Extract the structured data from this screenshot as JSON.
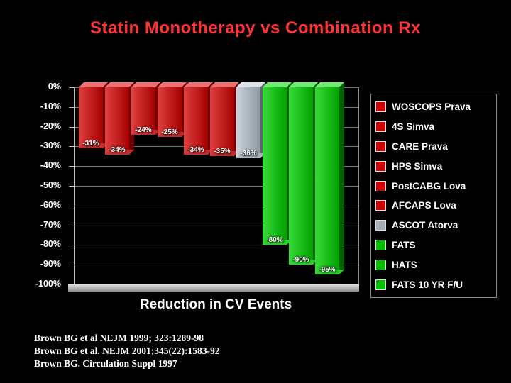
{
  "title": "Statin Monotherapy vs Combination Rx",
  "colors": {
    "background": "#000000",
    "title": "#ff3333",
    "axis_text": "#ffffff",
    "gridline": "#7a7a7a"
  },
  "palette": {
    "red": {
      "front1": "#e04040",
      "front2": "#a50000",
      "side": "#700000",
      "top": "#ee7070",
      "cap": "#c83030",
      "swatch": "#cc0000"
    },
    "silver": {
      "front1": "#ccd4dc",
      "front2": "#8d97a1",
      "side": "#5c666e",
      "top": "#dde4ea",
      "cap": "#aeb6be",
      "swatch": "#a4adb6"
    },
    "green": {
      "front1": "#38dc38",
      "front2": "#00a000",
      "side": "#006400",
      "top": "#70ea70",
      "cap": "#2cd42c",
      "swatch": "#00c000"
    }
  },
  "chart_data": {
    "type": "bar",
    "title": "Statin Monotherapy vs Combination Rx",
    "xlabel": "Reduction in CV Events",
    "ylabel": "",
    "ylim": [
      -100,
      0
    ],
    "grid": true,
    "legend_position": "right",
    "y_ticks": [
      "0%",
      "-10%",
      "-20%",
      "-30%",
      "-40%",
      "-50%",
      "-60%",
      "-70%",
      "-80%",
      "-90%",
      "-100%"
    ],
    "categories": [
      "WOSCOPS Prava",
      "4S Simva",
      "CARE Prava",
      "HPS Simva",
      "PostCABG Lova",
      "AFCAPS Lova",
      "ASCOT Atorva",
      "FATS",
      "HATS",
      "FATS 10 YR F/U"
    ],
    "values": [
      -31,
      -34,
      -24,
      -25,
      -34,
      -35,
      -36,
      -80,
      -90,
      -95
    ],
    "bar_labels": [
      "-31%",
      "-34%",
      "-24%",
      "-25%",
      "-34%",
      "-35%",
      "-36%",
      "-80%",
      "-90%",
      "-95%"
    ],
    "bar_color_keys": [
      "red",
      "red",
      "red",
      "red",
      "red",
      "red",
      "silver",
      "green",
      "green",
      "green"
    ]
  },
  "citations": [
    "Brown BG et al NEJM 1999; 323:1289-98",
    "Brown BG et al. NEJM 2001;345(22):1583-92",
    "Brown BG. Circulation Suppl 1997"
  ]
}
